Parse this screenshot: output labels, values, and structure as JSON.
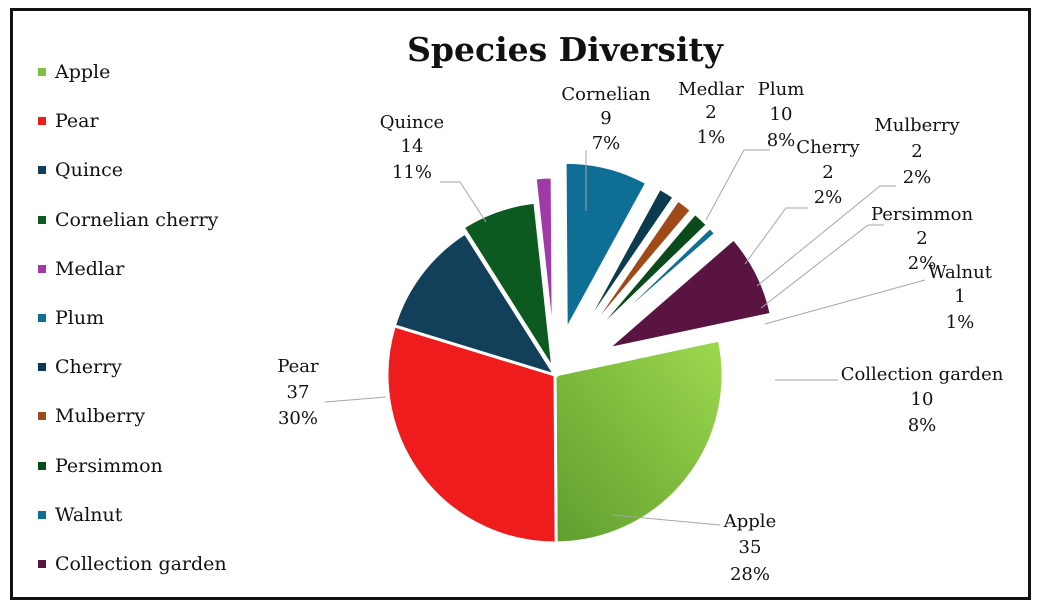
{
  "chart_data": {
    "type": "pie",
    "title": "Species Diversity",
    "legend_position": "left",
    "slices": [
      {
        "name": "Apple",
        "value": 35,
        "percent": "28%",
        "color": "#7cc242"
      },
      {
        "name": "Pear",
        "value": 37,
        "percent": "30%",
        "color": "#ee1c1c"
      },
      {
        "name": "Quince",
        "value": 14,
        "percent": "11%",
        "color": "#12405a"
      },
      {
        "name": "Cornelian cherry",
        "label_name": "Cornelian",
        "value": 9,
        "percent": "7%",
        "color": "#0d5a20"
      },
      {
        "name": "Medlar",
        "value": 2,
        "percent": "1%",
        "color": "#a03aa8"
      },
      {
        "name": "Plum",
        "value": 10,
        "percent": "8%",
        "color": "#0f6e96"
      },
      {
        "name": "Cherry",
        "value": 2,
        "percent": "2%",
        "color": "#0c3a4e"
      },
      {
        "name": "Mulberry",
        "value": 2,
        "percent": "2%",
        "color": "#a04a1a"
      },
      {
        "name": "Persimmon",
        "value": 2,
        "percent": "2%",
        "color": "#0b4a1c"
      },
      {
        "name": "Walnut",
        "value": 1,
        "percent": "1%",
        "color": "#0f6e96"
      },
      {
        "name": "Collection garden",
        "value": 10,
        "percent": "8%",
        "color": "#5a1442"
      }
    ]
  }
}
